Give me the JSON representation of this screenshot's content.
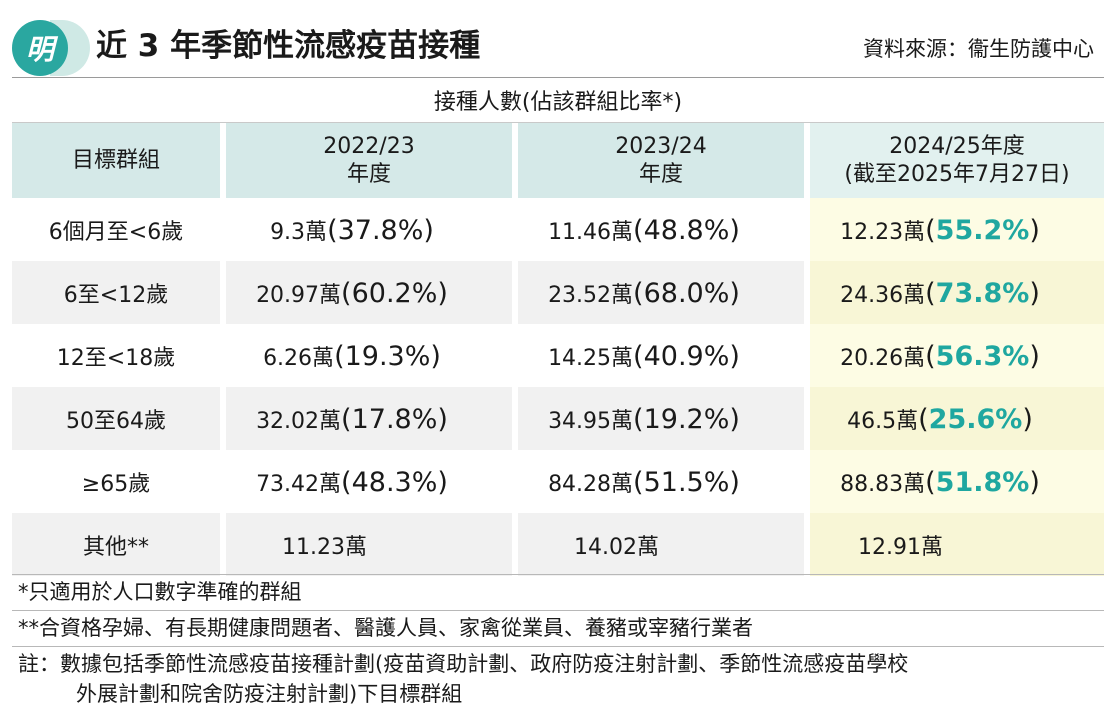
{
  "header": {
    "logo_char": "明",
    "title": "近 3 年季節性流感疫苗接種",
    "source": "資料來源：衞生防護中心"
  },
  "table": {
    "super_header": "接種人數(佔該群組比率*)",
    "columns": {
      "group": "目標群組",
      "y1_line1": "2022/23",
      "y1_line2": "年度",
      "y2_line1": "2023/24",
      "y2_line2": "年度",
      "y3_line1": "2024/25年度",
      "y3_line2": "(截至2025年7月27日)"
    },
    "rows": [
      {
        "group": "6個月至<6歲",
        "y1_count": "9.3萬",
        "y1_pct": "37.8%",
        "y2_count": "11.46萬",
        "y2_pct": "48.8%",
        "y3_count": "12.23萬",
        "y3_pct": "55.2%"
      },
      {
        "group": "6至<12歲",
        "y1_count": "20.97萬",
        "y1_pct": "60.2%",
        "y2_count": "23.52萬",
        "y2_pct": "68.0%",
        "y3_count": "24.36萬",
        "y3_pct": "73.8%"
      },
      {
        "group": "12至<18歲",
        "y1_count": "6.26萬",
        "y1_pct": "19.3%",
        "y2_count": "14.25萬",
        "y2_pct": "40.9%",
        "y3_count": "20.26萬",
        "y3_pct": "56.3%"
      },
      {
        "group": "50至64歲",
        "y1_count": "32.02萬",
        "y1_pct": "17.8%",
        "y2_count": "34.95萬",
        "y2_pct": "19.2%",
        "y3_count": "46.5萬",
        "y3_pct": "25.6%"
      },
      {
        "group": "≥65歲",
        "y1_count": "73.42萬",
        "y1_pct": "48.3%",
        "y2_count": "84.28萬",
        "y2_pct": "51.5%",
        "y3_count": "88.83萬",
        "y3_pct": "51.8%"
      },
      {
        "group": "其他**",
        "y1_count": "11.23萬",
        "y2_count": "14.02萬",
        "y3_count": "12.91萬"
      }
    ]
  },
  "notes": {
    "note1": "*只適用於人口數字準確的群組",
    "note2": "**合資格孕婦、有長期健康問題者、醫護人員、家禽從業員、養豬或宰豬行業者",
    "note3_line1": "註：數據包括季節性流感疫苗接種計劃(疫苗資助計劃、政府防疫注射計劃、季節性流感疫苗學校",
    "note3_line2": "外展計劃和院舍防疫注射計劃)下目標群組"
  },
  "colors": {
    "accent_teal": "#1fa7a0",
    "header_fill": "#d5e9e8",
    "highlight_column": "#fdfce4"
  }
}
